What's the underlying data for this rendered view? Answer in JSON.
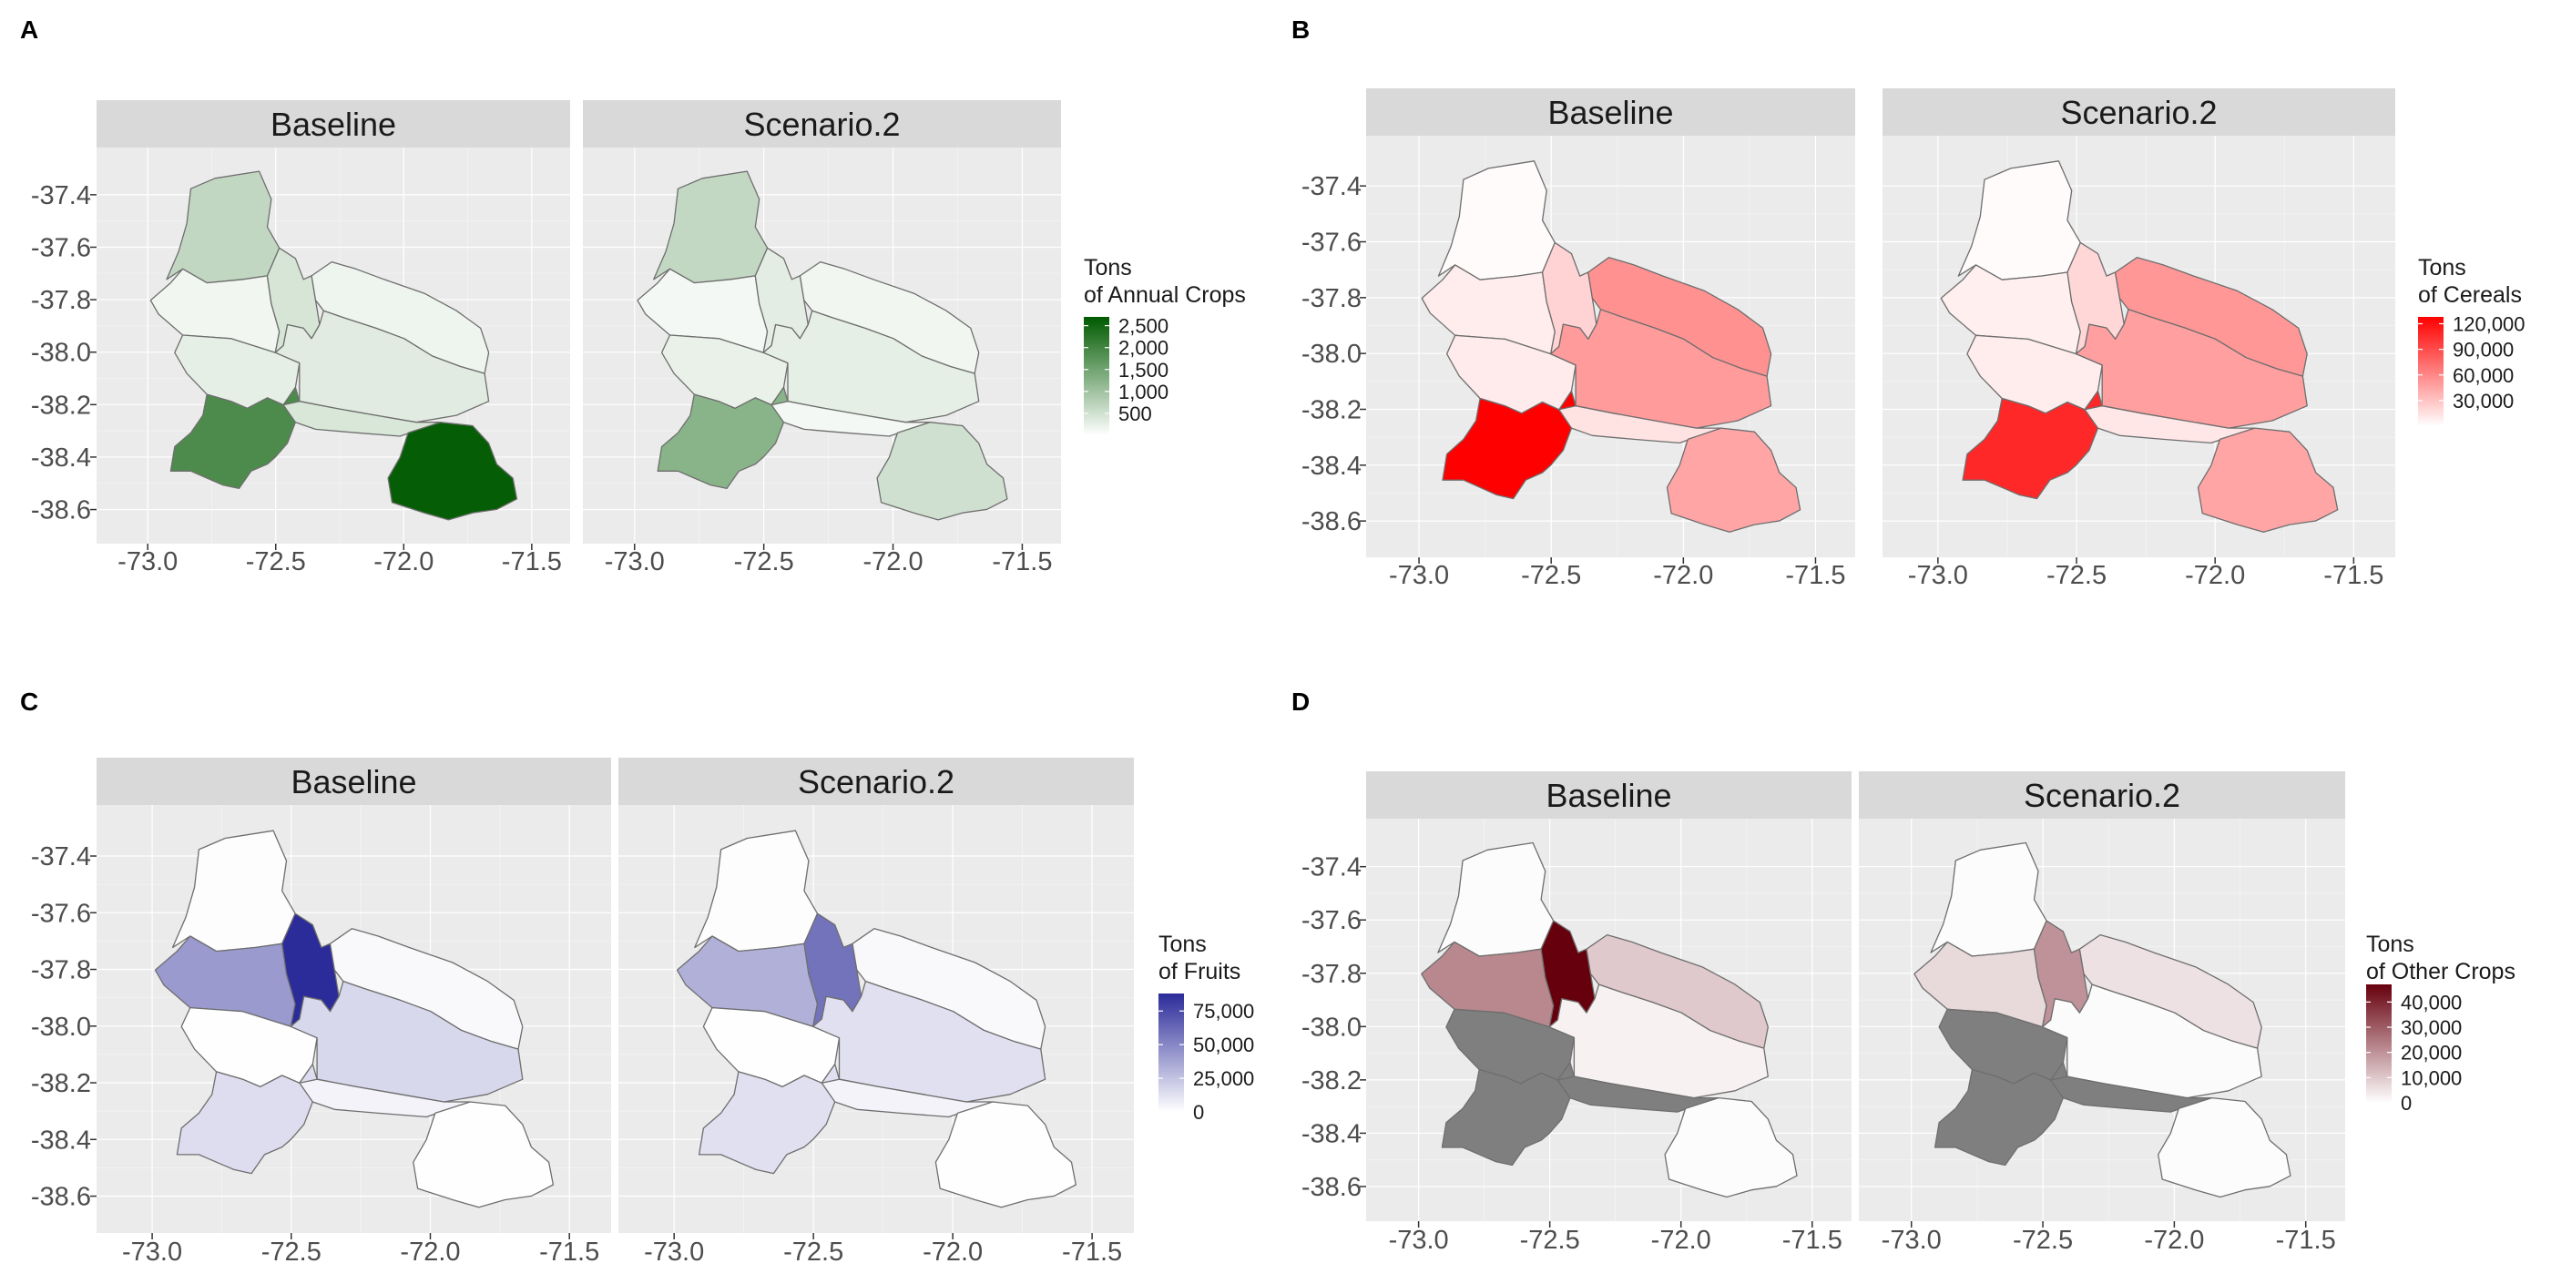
{
  "facet_labels": [
    "Baseline",
    "Scenario.2"
  ],
  "panels": [
    {
      "id": "A",
      "label": "A",
      "legend": {
        "title_lines": [
          "Tons",
          "of Annual Crops"
        ],
        "labels": [
          "2,500",
          "2,000",
          "1,500",
          "1,000",
          "500"
        ],
        "values": [
          2500,
          2000,
          1500,
          1000,
          500
        ],
        "min": 0,
        "max": 2700,
        "low_color": "#ffffff",
        "high_color": "#005a00"
      },
      "regions": {
        "north": [
          650,
          640
        ],
        "west": [
          150,
          120
        ],
        "center": [
          260,
          230
        ],
        "small": [
          420,
          300
        ],
        "east": [
          180,
          150
        ],
        "coastal": [
          320,
          260
        ],
        "south": [
          1900,
          1250
        ],
        "sw": [
          400,
          120
        ],
        "southeast": [
          2650,
          500
        ]
      }
    },
    {
      "id": "B",
      "label": "B",
      "legend": {
        "title_lines": [
          "Tons",
          "of Cereals"
        ],
        "labels": [
          "120,000",
          "90,000",
          "60,000",
          "30,000"
        ],
        "values": [
          120000,
          90000,
          60000,
          30000
        ],
        "min": 0,
        "max": 128000,
        "low_color": "#ffffff",
        "high_color": "#ff0000"
      },
      "regions": {
        "north": [
          2000,
          2000
        ],
        "west": [
          9000,
          8000
        ],
        "center": [
          10000,
          9000
        ],
        "small": [
          22000,
          20000
        ],
        "east": [
          55000,
          52000
        ],
        "coastal": [
          50000,
          48000
        ],
        "south": [
          128000,
          108000
        ],
        "sw": [
          14000,
          12000
        ],
        "southeast": [
          45000,
          45000
        ]
      }
    },
    {
      "id": "C",
      "label": "C",
      "legend": {
        "title_lines": [
          "Tons",
          "of Fruits"
        ],
        "labels": [
          "75,000",
          "50,000",
          "25,000",
          "0"
        ],
        "values": [
          75000,
          50000,
          25000,
          0
        ],
        "min": 0,
        "max": 88000,
        "low_color": "#ffffff",
        "high_color": "#2b2b9a"
      },
      "regions": {
        "north": [
          1000,
          1000
        ],
        "west": [
          42000,
          33000
        ],
        "center": [
          500,
          500
        ],
        "small": [
          88000,
          58000
        ],
        "east": [
          2500,
          2500
        ],
        "coastal": [
          16000,
          13000
        ],
        "south": [
          14000,
          13000
        ],
        "sw": [
          5000,
          5000
        ],
        "southeast": [
          500,
          500
        ]
      }
    },
    {
      "id": "D",
      "label": "D",
      "legend": {
        "title_lines": [
          "Tons",
          "of Other Crops"
        ],
        "labels": [
          "40,000",
          "30,000",
          "20,000",
          "10,000",
          "0"
        ],
        "values": [
          40000,
          30000,
          20000,
          10000,
          0
        ],
        "min": 0,
        "max": 47000,
        "low_color": "#ffffff",
        "high_color": "#67000d",
        "na_color": "#7f7f7f"
      },
      "regions": {
        "north": [
          500,
          500
        ],
        "west": [
          22000,
          7000
        ],
        "center": [
          null,
          null
        ],
        "small": [
          47000,
          20000
        ],
        "east": [
          10000,
          5500
        ],
        "coastal": [
          2500,
          800
        ],
        "south": [
          null,
          null
        ],
        "sw": [
          null,
          null
        ],
        "southeast": [
          500,
          500
        ]
      }
    }
  ],
  "axes": {
    "x_ticks": [
      -73.0,
      -72.5,
      -72.0,
      -71.5
    ],
    "x_tick_labels": [
      "-73.0",
      "-72.5",
      "-72.0",
      "-71.5"
    ],
    "y_ticks": [
      -37.4,
      -37.6,
      -37.8,
      -38.0,
      -38.2,
      -38.4,
      -38.6
    ],
    "y_tick_labels": [
      "-37.4",
      "-37.6",
      "-37.8",
      "-38.0",
      "-38.2",
      "-38.4",
      "-38.6"
    ],
    "xlim": [
      -73.2,
      -71.35
    ],
    "ylim": [
      -38.73,
      -37.22
    ]
  },
  "chart_data": [
    {
      "type": "choropleth",
      "title": "A",
      "facets": [
        "Baseline",
        "Scenario.2"
      ],
      "legend_title": "Tons of Annual Crops",
      "legend_ticks": [
        2500,
        2000,
        1500,
        1000,
        500
      ],
      "xlim": [
        -73.2,
        -71.35
      ],
      "ylim": [
        -38.73,
        -37.22
      ],
      "x_ticks": [
        -73.0,
        -72.5,
        -72.0,
        -71.5
      ],
      "y_ticks": [
        -37.4,
        -37.6,
        -37.8,
        -38.0,
        -38.2,
        -38.4,
        -38.6
      ]
    },
    {
      "type": "choropleth",
      "title": "B",
      "facets": [
        "Baseline",
        "Scenario.2"
      ],
      "legend_title": "Tons of Cereals",
      "legend_ticks": [
        120000,
        90000,
        60000,
        30000
      ],
      "xlim": [
        -73.2,
        -71.35
      ],
      "ylim": [
        -38.73,
        -37.22
      ],
      "x_ticks": [
        -73.0,
        -72.5,
        -72.0,
        -71.5
      ],
      "y_ticks": [
        -37.4,
        -37.6,
        -37.8,
        -38.0,
        -38.2,
        -38.4,
        -38.6
      ]
    },
    {
      "type": "choropleth",
      "title": "C",
      "facets": [
        "Baseline",
        "Scenario.2"
      ],
      "legend_title": "Tons of Fruits",
      "legend_ticks": [
        75000,
        50000,
        25000,
        0
      ],
      "xlim": [
        -73.2,
        -71.35
      ],
      "ylim": [
        -38.73,
        -37.22
      ],
      "x_ticks": [
        -73.0,
        -72.5,
        -72.0,
        -71.5
      ],
      "y_ticks": [
        -37.4,
        -37.6,
        -37.8,
        -38.0,
        -38.2,
        -38.4,
        -38.6
      ]
    },
    {
      "type": "choropleth",
      "title": "D",
      "facets": [
        "Baseline",
        "Scenario.2"
      ],
      "legend_title": "Tons of Other Crops",
      "legend_ticks": [
        40000,
        30000,
        20000,
        10000,
        0
      ],
      "xlim": [
        -73.2,
        -71.35
      ],
      "ylim": [
        -38.73,
        -37.22
      ],
      "x_ticks": [
        -73.0,
        -72.5,
        -72.0,
        -71.5
      ],
      "y_ticks": [
        -37.4,
        -37.6,
        -37.8,
        -38.0,
        -38.2,
        -38.4,
        -38.6
      ]
    }
  ]
}
